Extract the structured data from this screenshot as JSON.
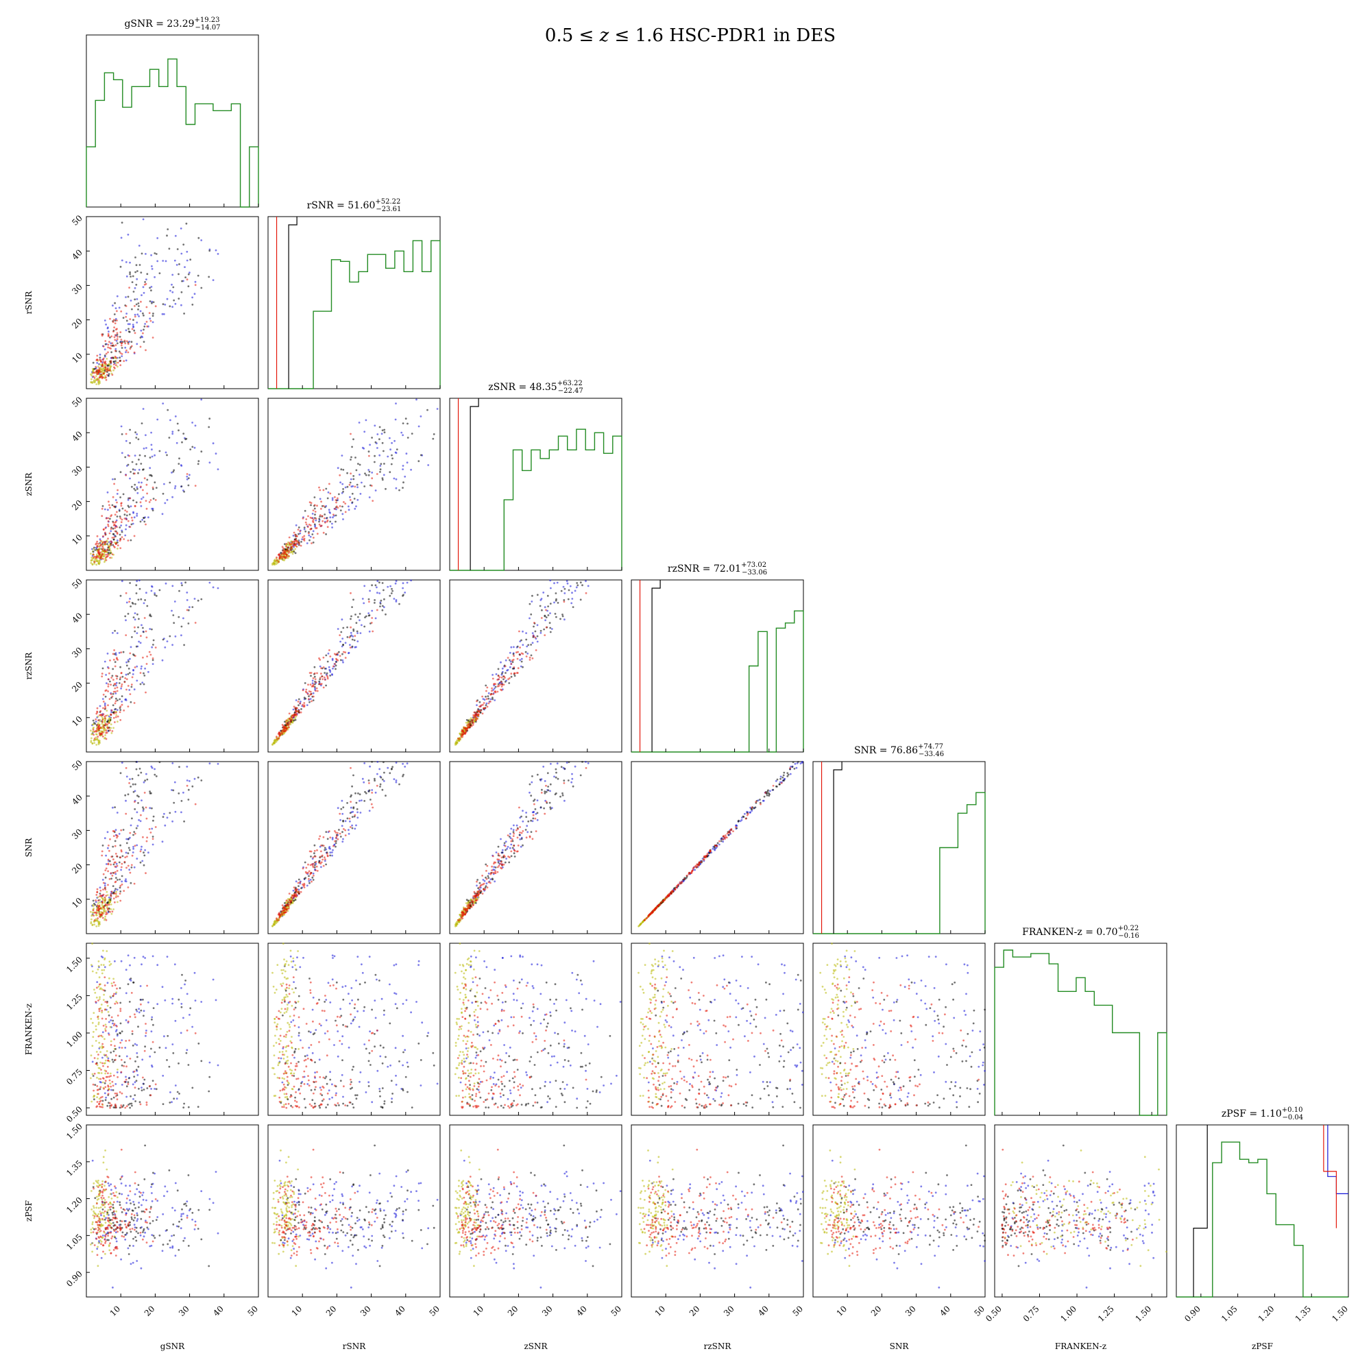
{
  "figure": {
    "title_parts": [
      "0.5 ≤ ",
      "z",
      " ≤ 1.6 HSC-PDR1 in DES"
    ]
  },
  "colors": {
    "green": "#228B22",
    "red": "#e3170a",
    "black": "#000000",
    "blue": "#1414d8",
    "yellow": "#b9b90a"
  },
  "chart_data": {
    "type": "scatter",
    "layout": "corner",
    "variables": [
      {
        "name": "gSNR",
        "median": "23.29",
        "plus": "+19.23",
        "minus": "−14.07",
        "range": [
          0,
          50
        ],
        "ticks": [
          10,
          20,
          30,
          40,
          50
        ],
        "tick_labels": [
          "10",
          "20",
          "30",
          "40",
          "50"
        ]
      },
      {
        "name": "rSNR",
        "median": "51.60",
        "plus": "+52.22",
        "minus": "−23.61",
        "range": [
          0,
          50
        ],
        "ticks": [
          10,
          20,
          30,
          40,
          50
        ],
        "tick_labels": [
          "10",
          "20",
          "30",
          "40",
          "50"
        ]
      },
      {
        "name": "zSNR",
        "median": "48.35",
        "plus": "+63.22",
        "minus": "−22.47",
        "range": [
          0,
          50
        ],
        "ticks": [
          10,
          20,
          30,
          40,
          50
        ],
        "tick_labels": [
          "10",
          "20",
          "30",
          "40",
          "50"
        ]
      },
      {
        "name": "rzSNR",
        "median": "72.01",
        "plus": "+73.02",
        "minus": "−33.06",
        "range": [
          0,
          50
        ],
        "ticks": [
          10,
          20,
          30,
          40,
          50
        ],
        "tick_labels": [
          "10",
          "20",
          "30",
          "40",
          "50"
        ]
      },
      {
        "name": "SNR",
        "median": "76.86",
        "plus": "+74.77",
        "minus": "−33.46",
        "range": [
          0,
          50
        ],
        "ticks": [
          10,
          20,
          30,
          40,
          50
        ],
        "tick_labels": [
          "10",
          "20",
          "30",
          "40",
          "50"
        ]
      },
      {
        "name": "FRANKEN-z",
        "median": "0.70",
        "plus": "+0.22",
        "minus": "−0.16",
        "range": [
          0.45,
          1.6
        ],
        "ticks": [
          0.5,
          0.75,
          1.0,
          1.25,
          1.5
        ],
        "tick_labels": [
          "0.50",
          "0.75",
          "1.00",
          "1.25",
          "1.50"
        ]
      },
      {
        "name": "zPSF",
        "median": "1.10",
        "plus": "+0.10",
        "minus": "−0.04",
        "range": [
          0.8,
          1.5
        ],
        "ticks": [
          0.9,
          1.05,
          1.2,
          1.35,
          1.5
        ],
        "tick_labels": [
          "0.90",
          "1.05",
          "1.20",
          "1.35",
          "1.50"
        ]
      }
    ],
    "histograms": [
      [
        0.35,
        0.62,
        0.78,
        0.74,
        0.58,
        0.7,
        0.7,
        0.8,
        0.7,
        0.86,
        0.7,
        0.48,
        0.6,
        0.6,
        0.56,
        0.56,
        0.6,
        0.0,
        0.35
      ],
      [
        0.0,
        0.0,
        0.0,
        0.0,
        0.0,
        0.45,
        0.45,
        0.75,
        0.74,
        0.62,
        0.68,
        0.78,
        0.78,
        0.7,
        0.8,
        0.68,
        0.86,
        0.68,
        0.86
      ],
      [
        0.0,
        0.0,
        0.0,
        0.0,
        0.0,
        0.0,
        0.41,
        0.7,
        0.58,
        0.7,
        0.65,
        0.7,
        0.78,
        0.7,
        0.82,
        0.7,
        0.8,
        0.68,
        0.78
      ],
      [
        0.0,
        0.0,
        0.0,
        0.0,
        0.0,
        0.0,
        0.0,
        0.0,
        0.0,
        0.0,
        0.0,
        0.0,
        0.0,
        0.5,
        0.7,
        0.0,
        0.72,
        0.75,
        0.82
      ],
      [
        0.0,
        0.0,
        0.0,
        0.0,
        0.0,
        0.0,
        0.0,
        0.0,
        0.0,
        0.0,
        0.0,
        0.0,
        0.0,
        0.0,
        0.5,
        0.5,
        0.7,
        0.75,
        0.82
      ],
      [
        0.86,
        0.96,
        0.92,
        0.92,
        0.94,
        0.94,
        0.88,
        0.72,
        0.72,
        0.8,
        0.72,
        0.64,
        0.64,
        0.48,
        0.48,
        0.48,
        0.0,
        0.0,
        0.48
      ],
      [
        0.0,
        0.0,
        0.0,
        0.0,
        0.78,
        0.9,
        0.9,
        0.8,
        0.78,
        0.8,
        0.6,
        0.42,
        0.42,
        0.3,
        0.0,
        0.0,
        0.0,
        0.0,
        0.0
      ]
    ]
  }
}
